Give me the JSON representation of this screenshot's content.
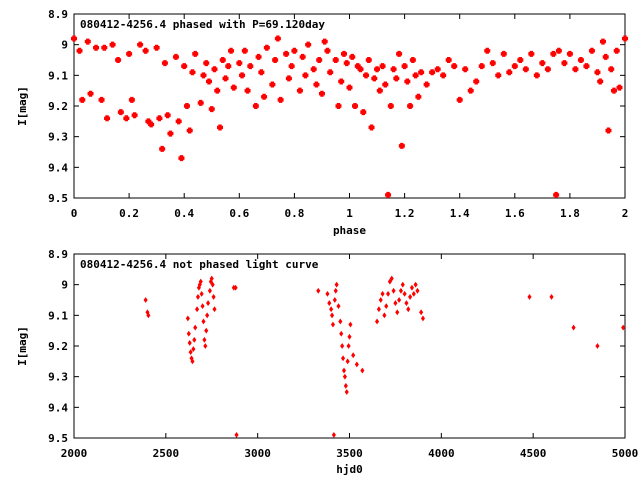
{
  "chart_data": [
    {
      "type": "scatter",
      "title": "080412-4256.4 phased with P=69.120day",
      "xlabel": "phase",
      "ylabel": "I[mag]",
      "xlim": [
        0,
        2
      ],
      "ylim": [
        8.9,
        9.5
      ],
      "y_inverted": true,
      "xticks": [
        "0",
        "0.2",
        "0.4",
        "0.6",
        "0.8",
        "1",
        "1.2",
        "1.4",
        "1.6",
        "1.8",
        "2"
      ],
      "yticks": [
        "8.9",
        "9",
        "9.1",
        "9.2",
        "9.3",
        "9.4",
        "9.5"
      ],
      "marker_color": "#ff0000",
      "points": [
        [
          0.0,
          8.98
        ],
        [
          0.02,
          9.02
        ],
        [
          0.03,
          9.18
        ],
        [
          0.05,
          8.99
        ],
        [
          0.06,
          9.16
        ],
        [
          0.08,
          9.01
        ],
        [
          0.1,
          9.18
        ],
        [
          0.11,
          9.01
        ],
        [
          0.12,
          9.24
        ],
        [
          0.14,
          9.0
        ],
        [
          0.16,
          9.05
        ],
        [
          0.17,
          9.22
        ],
        [
          0.19,
          9.24
        ],
        [
          0.2,
          9.03
        ],
        [
          0.21,
          9.18
        ],
        [
          0.22,
          9.23
        ],
        [
          0.24,
          9.0
        ],
        [
          0.26,
          9.02
        ],
        [
          0.27,
          9.25
        ],
        [
          0.28,
          9.26
        ],
        [
          0.3,
          9.01
        ],
        [
          0.31,
          9.24
        ],
        [
          0.32,
          9.34
        ],
        [
          0.33,
          9.06
        ],
        [
          0.34,
          9.23
        ],
        [
          0.35,
          9.29
        ],
        [
          0.37,
          9.04
        ],
        [
          0.38,
          9.25
        ],
        [
          0.39,
          9.37
        ],
        [
          0.4,
          9.07
        ],
        [
          0.41,
          9.2
        ],
        [
          0.42,
          9.28
        ],
        [
          0.43,
          9.09
        ],
        [
          0.44,
          9.03
        ],
        [
          0.46,
          9.19
        ],
        [
          0.47,
          9.1
        ],
        [
          0.48,
          9.06
        ],
        [
          0.49,
          9.12
        ],
        [
          0.5,
          9.21
        ],
        [
          0.51,
          9.08
        ],
        [
          0.52,
          9.15
        ],
        [
          0.53,
          9.27
        ],
        [
          0.54,
          9.05
        ],
        [
          0.55,
          9.11
        ],
        [
          0.56,
          9.07
        ],
        [
          0.57,
          9.02
        ],
        [
          0.58,
          9.14
        ],
        [
          0.6,
          9.06
        ],
        [
          0.61,
          9.1
        ],
        [
          0.62,
          9.02
        ],
        [
          0.63,
          9.15
        ],
        [
          0.64,
          9.07
        ],
        [
          0.66,
          9.2
        ],
        [
          0.67,
          9.04
        ],
        [
          0.68,
          9.09
        ],
        [
          0.69,
          9.17
        ],
        [
          0.7,
          9.01
        ],
        [
          0.72,
          9.13
        ],
        [
          0.73,
          9.05
        ],
        [
          0.74,
          8.98
        ],
        [
          0.75,
          9.18
        ],
        [
          0.77,
          9.03
        ],
        [
          0.78,
          9.11
        ],
        [
          0.79,
          9.07
        ],
        [
          0.8,
          9.02
        ],
        [
          0.82,
          9.15
        ],
        [
          0.83,
          9.04
        ],
        [
          0.84,
          9.1
        ],
        [
          0.85,
          9.0
        ],
        [
          0.87,
          9.08
        ],
        [
          0.88,
          9.13
        ],
        [
          0.89,
          9.05
        ],
        [
          0.9,
          9.16
        ],
        [
          0.91,
          8.99
        ],
        [
          0.92,
          9.02
        ],
        [
          0.93,
          9.09
        ],
        [
          0.95,
          9.05
        ],
        [
          0.96,
          9.2
        ],
        [
          0.97,
          9.12
        ],
        [
          0.98,
          9.03
        ],
        [
          0.99,
          9.06
        ],
        [
          1.0,
          9.14
        ],
        [
          1.01,
          9.04
        ],
        [
          1.02,
          9.2
        ],
        [
          1.03,
          9.07
        ],
        [
          1.04,
          9.08
        ],
        [
          1.05,
          9.22
        ],
        [
          1.06,
          9.1
        ],
        [
          1.07,
          9.05
        ],
        [
          1.08,
          9.27
        ],
        [
          1.09,
          9.11
        ],
        [
          1.1,
          9.08
        ],
        [
          1.11,
          9.15
        ],
        [
          1.12,
          9.07
        ],
        [
          1.13,
          9.13
        ],
        [
          1.14,
          9.49
        ],
        [
          1.15,
          9.2
        ],
        [
          1.16,
          9.08
        ],
        [
          1.17,
          9.11
        ],
        [
          1.18,
          9.03
        ],
        [
          1.19,
          9.33
        ],
        [
          1.2,
          9.07
        ],
        [
          1.21,
          9.12
        ],
        [
          1.22,
          9.2
        ],
        [
          1.23,
          9.05
        ],
        [
          1.24,
          9.1
        ],
        [
          1.25,
          9.17
        ],
        [
          1.26,
          9.09
        ],
        [
          1.28,
          9.13
        ],
        [
          1.3,
          9.09
        ],
        [
          1.32,
          9.08
        ],
        [
          1.34,
          9.1
        ],
        [
          1.36,
          9.05
        ],
        [
          1.38,
          9.07
        ],
        [
          1.4,
          9.18
        ],
        [
          1.42,
          9.08
        ],
        [
          1.44,
          9.15
        ],
        [
          1.46,
          9.12
        ],
        [
          1.48,
          9.07
        ],
        [
          1.5,
          9.02
        ],
        [
          1.52,
          9.06
        ],
        [
          1.54,
          9.1
        ],
        [
          1.56,
          9.03
        ],
        [
          1.58,
          9.09
        ],
        [
          1.6,
          9.07
        ],
        [
          1.62,
          9.05
        ],
        [
          1.64,
          9.08
        ],
        [
          1.66,
          9.03
        ],
        [
          1.68,
          9.1
        ],
        [
          1.7,
          9.06
        ],
        [
          1.72,
          9.08
        ],
        [
          1.74,
          9.03
        ],
        [
          1.75,
          9.49
        ],
        [
          1.76,
          9.02
        ],
        [
          1.78,
          9.06
        ],
        [
          1.8,
          9.03
        ],
        [
          1.82,
          9.08
        ],
        [
          1.84,
          9.05
        ],
        [
          1.86,
          9.07
        ],
        [
          1.88,
          9.02
        ],
        [
          1.9,
          9.09
        ],
        [
          1.91,
          9.12
        ],
        [
          1.92,
          8.99
        ],
        [
          1.93,
          9.04
        ],
        [
          1.94,
          9.28
        ],
        [
          1.95,
          9.08
        ],
        [
          1.96,
          9.15
        ],
        [
          1.97,
          9.02
        ],
        [
          1.98,
          9.14
        ],
        [
          2.0,
          8.98
        ]
      ]
    },
    {
      "type": "scatter",
      "title": "080412-4256.4 not phased light curve",
      "xlabel": "hjd0",
      "ylabel": "I[mag]",
      "xlim": [
        2000,
        5000
      ],
      "ylim": [
        8.9,
        9.5
      ],
      "y_inverted": true,
      "xticks": [
        "2000",
        "2500",
        "3000",
        "3500",
        "4000",
        "4500",
        "5000"
      ],
      "yticks": [
        "8.9",
        "9",
        "9.1",
        "9.2",
        "9.3",
        "9.4",
        "9.5"
      ],
      "marker_color": "#ff0000",
      "points": [
        [
          2390,
          9.05
        ],
        [
          2400,
          9.09
        ],
        [
          2405,
          9.1
        ],
        [
          2620,
          9.11
        ],
        [
          2625,
          9.16
        ],
        [
          2630,
          9.19
        ],
        [
          2635,
          9.22
        ],
        [
          2640,
          9.24
        ],
        [
          2645,
          9.25
        ],
        [
          2650,
          9.21
        ],
        [
          2655,
          9.18
        ],
        [
          2660,
          9.14
        ],
        [
          2670,
          9.08
        ],
        [
          2675,
          9.04
        ],
        [
          2680,
          9.01
        ],
        [
          2685,
          9.0
        ],
        [
          2690,
          8.99
        ],
        [
          2695,
          9.03
        ],
        [
          2700,
          9.07
        ],
        [
          2705,
          9.12
        ],
        [
          2710,
          9.18
        ],
        [
          2715,
          9.2
        ],
        [
          2720,
          9.15
        ],
        [
          2725,
          9.1
        ],
        [
          2730,
          9.06
        ],
        [
          2740,
          9.02
        ],
        [
          2745,
          8.99
        ],
        [
          2750,
          8.98
        ],
        [
          2755,
          9.0
        ],
        [
          2760,
          9.04
        ],
        [
          2765,
          9.08
        ],
        [
          2870,
          9.01
        ],
        [
          2880,
          9.01
        ],
        [
          2885,
          9.49
        ],
        [
          3330,
          9.02
        ],
        [
          3380,
          9.03
        ],
        [
          3390,
          9.06
        ],
        [
          3400,
          9.08
        ],
        [
          3405,
          9.1
        ],
        [
          3410,
          9.13
        ],
        [
          3415,
          9.49
        ],
        [
          3420,
          9.05
        ],
        [
          3425,
          9.02
        ],
        [
          3430,
          9.0
        ],
        [
          3440,
          9.07
        ],
        [
          3450,
          9.12
        ],
        [
          3455,
          9.16
        ],
        [
          3460,
          9.2
        ],
        [
          3465,
          9.24
        ],
        [
          3470,
          9.28
        ],
        [
          3475,
          9.3
        ],
        [
          3480,
          9.33
        ],
        [
          3485,
          9.35
        ],
        [
          3490,
          9.25
        ],
        [
          3495,
          9.2
        ],
        [
          3500,
          9.17
        ],
        [
          3505,
          9.13
        ],
        [
          3520,
          9.23
        ],
        [
          3540,
          9.26
        ],
        [
          3570,
          9.28
        ],
        [
          3650,
          9.12
        ],
        [
          3660,
          9.08
        ],
        [
          3670,
          9.05
        ],
        [
          3680,
          9.03
        ],
        [
          3690,
          9.1
        ],
        [
          3700,
          9.07
        ],
        [
          3710,
          9.03
        ],
        [
          3720,
          8.99
        ],
        [
          3730,
          8.98
        ],
        [
          3740,
          9.02
        ],
        [
          3750,
          9.06
        ],
        [
          3760,
          9.09
        ],
        [
          3770,
          9.05
        ],
        [
          3780,
          9.02
        ],
        [
          3790,
          9.0
        ],
        [
          3800,
          9.03
        ],
        [
          3810,
          9.06
        ],
        [
          3820,
          9.08
        ],
        [
          3830,
          9.04
        ],
        [
          3840,
          9.01
        ],
        [
          3850,
          9.03
        ],
        [
          3860,
          9.0
        ],
        [
          3870,
          9.02
        ],
        [
          3890,
          9.09
        ],
        [
          3900,
          9.11
        ],
        [
          4480,
          9.04
        ],
        [
          4600,
          9.04
        ],
        [
          4720,
          9.14
        ],
        [
          4850,
          9.2
        ],
        [
          4990,
          9.14
        ]
      ]
    }
  ]
}
